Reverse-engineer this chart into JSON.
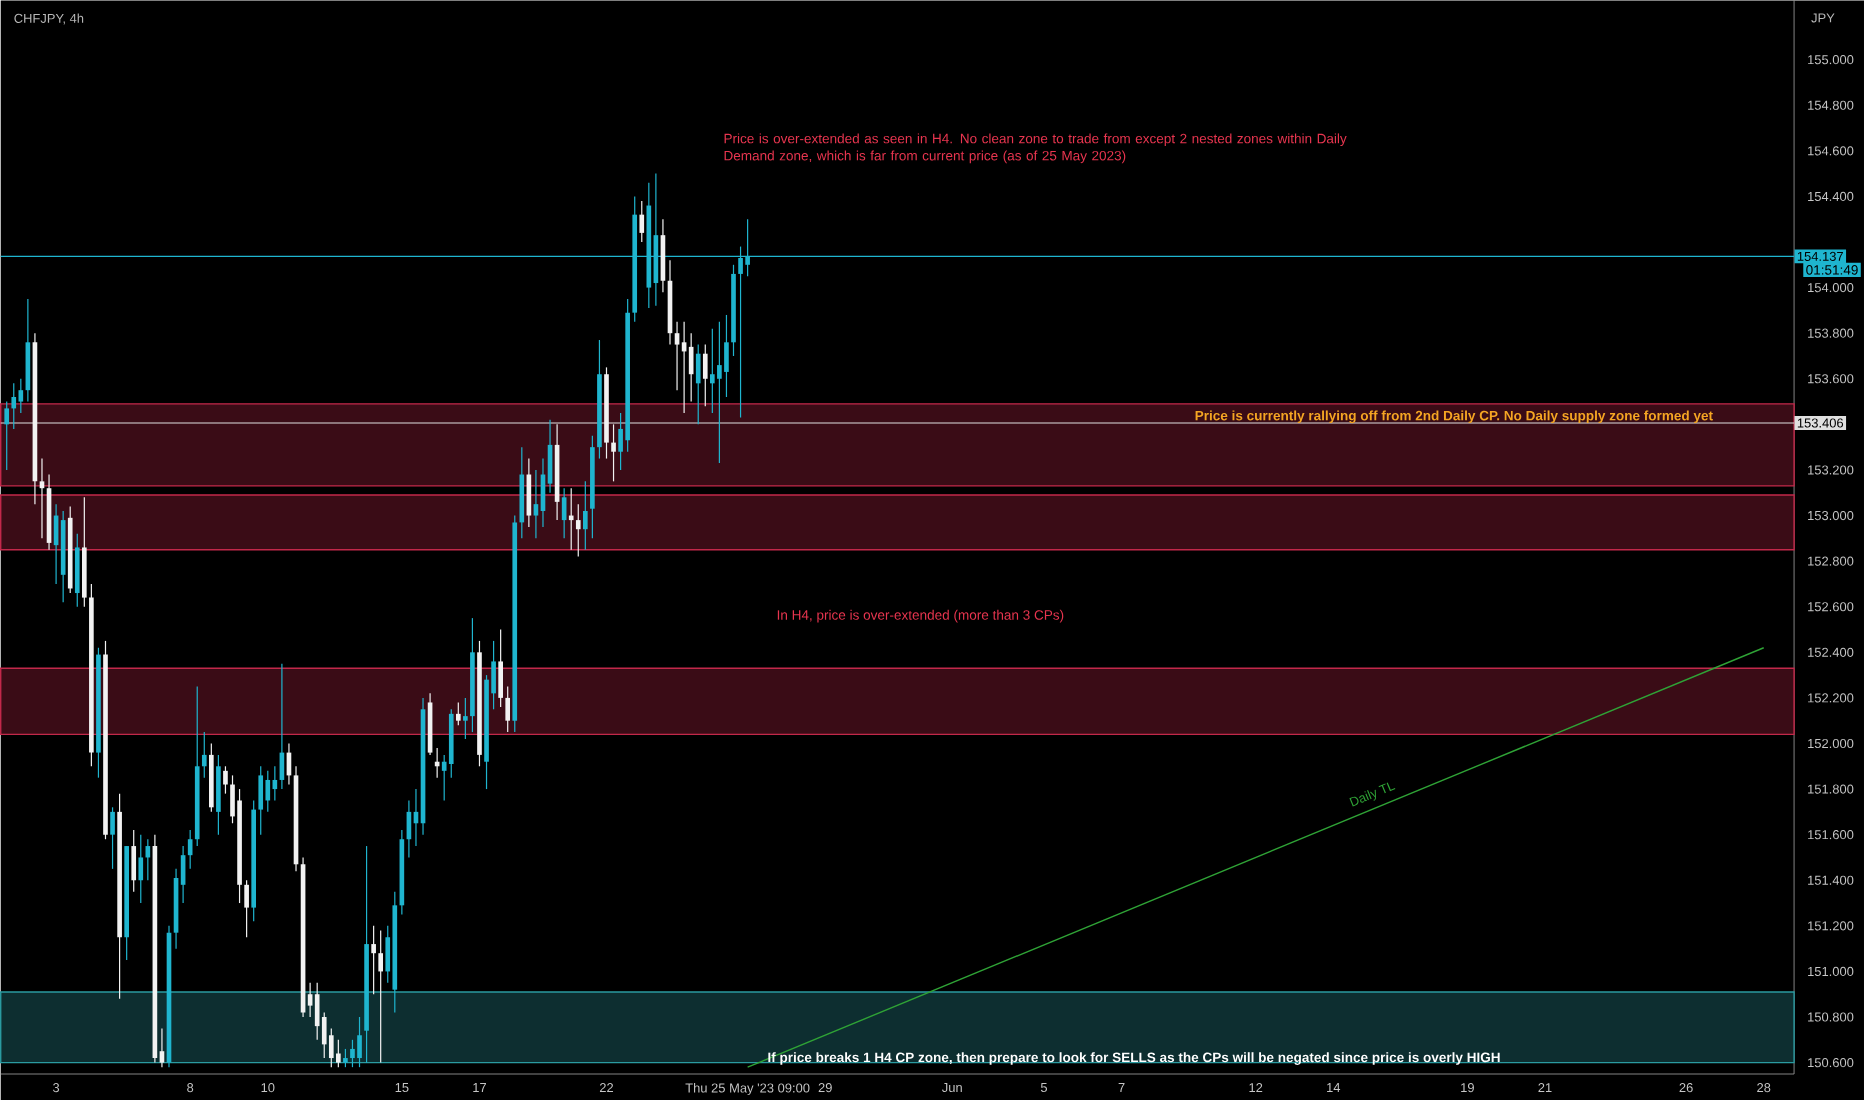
{
  "chart_data": {
    "type": "candlestick",
    "title": "CHFJPY, 4h",
    "ylabel": "JPY",
    "categories": [
      null,
      null,
      null,
      null,
      null,
      null,
      null,
      "3",
      null,
      null,
      null,
      null,
      null,
      null,
      null,
      null,
      null,
      null,
      null,
      null,
      null,
      null,
      null,
      null,
      null,
      null,
      "8",
      null,
      null,
      null,
      null,
      null,
      null,
      null,
      null,
      null,
      null,
      "10",
      null,
      null,
      null,
      null,
      null,
      null,
      null,
      null,
      null,
      null,
      null,
      null,
      null,
      null,
      null,
      null,
      null,
      null,
      "15",
      null,
      null,
      null,
      null,
      null,
      null,
      null,
      null,
      null,
      null,
      "17",
      null,
      null,
      null,
      null,
      null,
      null,
      null,
      null,
      null,
      null,
      null,
      null,
      null,
      null,
      null,
      null,
      null,
      "22",
      null,
      null,
      null,
      null,
      null,
      null,
      null,
      null,
      null,
      null,
      null,
      null,
      null,
      null,
      null,
      null,
      null,
      null,
      null,
      "Thu 25 May '23  09:00",
      null,
      null,
      null,
      null,
      null,
      null,
      null,
      null,
      null,
      null,
      "29",
      null,
      null,
      null,
      null,
      null,
      null,
      null,
      null,
      null,
      null,
      null,
      null,
      null,
      null,
      null,
      null,
      null,
      "Jun",
      null,
      null,
      null,
      null,
      null,
      null,
      null,
      null,
      null,
      null,
      null,
      null,
      "5",
      null,
      null,
      null,
      null,
      null,
      null,
      null,
      null,
      null,
      null,
      "7",
      null,
      null,
      null,
      null,
      null,
      null,
      null,
      null,
      null,
      null,
      null,
      null,
      null,
      null,
      null,
      null,
      null,
      null,
      "12",
      null,
      null,
      null,
      null,
      null,
      null,
      null,
      null,
      null,
      null,
      "14",
      null,
      null,
      null,
      null,
      null,
      null,
      null,
      null,
      null,
      null,
      null,
      null,
      null,
      null,
      null,
      null,
      null,
      null,
      "19",
      null,
      null,
      null,
      null,
      null,
      null,
      null,
      null,
      null,
      null,
      "21",
      null,
      null,
      null,
      null,
      null,
      null,
      null,
      null,
      null,
      null,
      null,
      null,
      null,
      null,
      null,
      null,
      null,
      null,
      null,
      "26",
      null,
      null,
      null,
      null,
      null,
      null,
      null,
      null,
      null,
      null,
      "28",
      null,
      null,
      null
    ],
    "ohlc": [
      [
        153.4,
        153.5,
        153.2,
        153.47
      ],
      [
        153.47,
        153.58,
        153.38,
        153.52
      ],
      [
        153.5,
        153.6,
        153.45,
        153.55
      ],
      [
        153.55,
        153.95,
        153.5,
        153.76
      ],
      [
        153.76,
        153.8,
        153.05,
        153.15
      ],
      [
        153.15,
        153.25,
        152.9,
        153.12
      ],
      [
        153.12,
        153.18,
        152.85,
        152.88
      ],
      [
        152.87,
        153.05,
        152.7,
        153.0
      ],
      [
        152.74,
        153.02,
        152.62,
        152.98
      ],
      [
        152.99,
        153.04,
        152.66,
        152.68
      ],
      [
        152.66,
        152.92,
        152.6,
        152.86
      ],
      [
        152.86,
        153.08,
        152.6,
        152.64
      ],
      [
        152.64,
        152.7,
        151.9,
        151.96
      ],
      [
        151.96,
        152.42,
        151.85,
        152.39
      ],
      [
        152.39,
        152.45,
        151.58,
        151.6
      ],
      [
        151.6,
        151.72,
        151.45,
        151.7
      ],
      [
        151.7,
        151.78,
        150.88,
        151.15
      ],
      [
        151.15,
        151.55,
        151.05,
        151.55
      ],
      [
        151.55,
        151.62,
        151.35,
        151.4
      ],
      [
        151.4,
        151.6,
        151.3,
        151.5
      ],
      [
        151.5,
        151.58,
        151.4,
        151.55
      ],
      [
        151.55,
        151.6,
        150.6,
        150.62
      ],
      [
        150.65,
        150.75,
        150.58,
        150.6
      ],
      [
        150.6,
        151.2,
        150.58,
        151.17
      ],
      [
        151.17,
        151.45,
        151.1,
        151.41
      ],
      [
        151.38,
        151.55,
        151.3,
        151.51
      ],
      [
        151.51,
        151.62,
        151.45,
        151.58
      ],
      [
        151.58,
        152.25,
        151.55,
        151.9
      ],
      [
        151.9,
        152.05,
        151.85,
        151.95
      ],
      [
        151.95,
        152.0,
        151.7,
        151.72
      ],
      [
        151.7,
        151.95,
        151.6,
        151.9
      ],
      [
        151.88,
        151.9,
        151.78,
        151.82
      ],
      [
        151.82,
        151.86,
        151.65,
        151.68
      ],
      [
        151.75,
        151.8,
        151.3,
        151.38
      ],
      [
        151.38,
        151.4,
        151.15,
        151.28
      ],
      [
        151.28,
        151.75,
        151.22,
        151.71
      ],
      [
        151.71,
        151.9,
        151.6,
        151.86
      ],
      [
        151.75,
        151.88,
        151.7,
        151.84
      ],
      [
        151.8,
        151.9,
        151.75,
        151.84
      ],
      [
        151.84,
        152.35,
        151.8,
        151.96
      ],
      [
        151.96,
        152.0,
        151.82,
        151.86
      ],
      [
        151.86,
        151.9,
        151.44,
        151.47
      ],
      [
        151.47,
        151.5,
        150.8,
        150.82
      ],
      [
        150.9,
        150.95,
        150.8,
        150.85
      ],
      [
        150.9,
        150.95,
        150.7,
        150.76
      ],
      [
        150.8,
        150.82,
        150.62,
        150.68
      ],
      [
        150.72,
        150.75,
        150.58,
        150.62
      ],
      [
        150.64,
        150.7,
        150.58,
        150.6
      ],
      [
        150.6,
        150.66,
        150.58,
        150.62
      ],
      [
        150.62,
        150.7,
        150.58,
        150.66
      ],
      [
        150.62,
        150.8,
        150.58,
        150.72
      ],
      [
        150.74,
        151.55,
        150.6,
        151.12
      ],
      [
        151.12,
        151.2,
        150.9,
        151.08
      ],
      [
        151.08,
        151.18,
        150.6,
        151.0
      ],
      [
        151.0,
        151.2,
        150.95,
        151.15
      ],
      [
        150.92,
        151.35,
        150.82,
        151.29
      ],
      [
        151.29,
        151.62,
        151.25,
        151.58
      ],
      [
        151.58,
        151.75,
        151.5,
        151.7
      ],
      [
        151.65,
        151.8,
        151.55,
        151.7
      ],
      [
        151.65,
        152.2,
        151.6,
        152.15
      ],
      [
        152.18,
        152.22,
        151.95,
        151.96
      ],
      [
        151.92,
        151.98,
        151.85,
        151.9
      ],
      [
        151.88,
        151.95,
        151.75,
        151.92
      ],
      [
        151.91,
        152.15,
        151.85,
        152.13
      ],
      [
        152.13,
        152.18,
        152.08,
        152.1
      ],
      [
        152.1,
        152.2,
        152.02,
        152.12
      ],
      [
        152.12,
        152.55,
        152.05,
        152.4
      ],
      [
        152.4,
        152.45,
        151.9,
        151.95
      ],
      [
        151.92,
        152.3,
        151.8,
        152.28
      ],
      [
        152.22,
        152.45,
        152.15,
        152.36
      ],
      [
        152.36,
        152.5,
        152.16,
        152.2
      ],
      [
        152.2,
        152.25,
        152.05,
        152.1
      ],
      [
        152.1,
        153.0,
        152.05,
        152.97
      ],
      [
        152.97,
        153.3,
        152.9,
        153.18
      ],
      [
        153.18,
        153.25,
        152.95,
        153.0
      ],
      [
        153.0,
        153.2,
        152.9,
        153.05
      ],
      [
        153.02,
        153.25,
        152.95,
        153.18
      ],
      [
        153.14,
        153.42,
        153.1,
        153.31
      ],
      [
        153.31,
        153.4,
        152.98,
        153.06
      ],
      [
        152.98,
        153.12,
        152.9,
        153.08
      ],
      [
        153.0,
        153.12,
        152.85,
        152.98
      ],
      [
        152.98,
        153.05,
        152.82,
        152.94
      ],
      [
        152.94,
        153.15,
        152.85,
        153.02
      ],
      [
        153.03,
        153.35,
        152.9,
        153.3
      ],
      [
        153.3,
        153.77,
        153.25,
        153.62
      ],
      [
        153.62,
        153.65,
        153.25,
        153.32
      ],
      [
        153.32,
        153.4,
        153.15,
        153.28
      ],
      [
        153.28,
        153.45,
        153.2,
        153.38
      ],
      [
        153.33,
        153.95,
        153.28,
        153.89
      ],
      [
        153.89,
        154.4,
        153.85,
        154.32
      ],
      [
        154.32,
        154.38,
        154.2,
        154.24
      ],
      [
        154.0,
        154.46,
        153.91,
        154.36
      ],
      [
        154.02,
        154.5,
        153.92,
        154.23
      ],
      [
        154.23,
        154.3,
        153.98,
        154.03
      ],
      [
        154.03,
        154.12,
        153.75,
        153.8
      ],
      [
        153.8,
        153.85,
        153.55,
        153.75
      ],
      [
        153.76,
        153.85,
        153.45,
        153.72
      ],
      [
        153.74,
        153.8,
        153.5,
        153.62
      ],
      [
        153.58,
        153.75,
        153.4,
        153.71
      ],
      [
        153.71,
        153.75,
        153.48,
        153.6
      ],
      [
        153.58,
        153.82,
        153.45,
        153.62
      ],
      [
        153.6,
        153.85,
        153.23,
        153.66
      ],
      [
        153.63,
        153.88,
        153.52,
        153.76
      ],
      [
        153.76,
        154.1,
        153.7,
        154.06
      ],
      [
        154.06,
        154.18,
        153.43,
        154.13
      ],
      [
        154.1,
        154.3,
        154.05,
        154.137
      ],
      null,
      null,
      null,
      null,
      null,
      null,
      null,
      null,
      null,
      null,
      null,
      null,
      null,
      null,
      null,
      null,
      null,
      null,
      null,
      null,
      null,
      null,
      null,
      null,
      null,
      null,
      null,
      null,
      null,
      null,
      null,
      null,
      null,
      null,
      null,
      null,
      null,
      null,
      null,
      null,
      null,
      null,
      null,
      null,
      null,
      null,
      null,
      null,
      null,
      null,
      null,
      null,
      null,
      null,
      null,
      null,
      null,
      null,
      null,
      null,
      null,
      null,
      null,
      null,
      null,
      null,
      null,
      null,
      null,
      null,
      null,
      null,
      null,
      null,
      null,
      null,
      null,
      null,
      null,
      null,
      null,
      null,
      null,
      null,
      null,
      null,
      null,
      null,
      null,
      null,
      null,
      null,
      null,
      null,
      null,
      null,
      null,
      null,
      null,
      null,
      null,
      null,
      null,
      null,
      null,
      null,
      null,
      null,
      null,
      null,
      null,
      null,
      null,
      null,
      null,
      null,
      null,
      null,
      null,
      null,
      null,
      null,
      null,
      null,
      null,
      null,
      null,
      null,
      null,
      null,
      null,
      null,
      null,
      null,
      null,
      null,
      null,
      null,
      null,
      null,
      null,
      null,
      null,
      null,
      null,
      null,
      null
    ],
    "colors": [
      "#1fb5cf",
      "#1fb5cf",
      "#1fb5cf",
      "#1fb5cf",
      "#f2f2f2",
      "#f2f2f2",
      "#f2f2f2",
      "#1fb5cf",
      "#1fb5cf",
      "#f2f2f2",
      "#1fb5cf",
      "#f2f2f2",
      "#f2f2f2",
      "#1fb5cf",
      "#f2f2f2",
      "#1fb5cf",
      "#f2f2f2",
      "#1fb5cf",
      "#f2f2f2",
      "#1fb5cf",
      "#1fb5cf",
      "#f2f2f2",
      "#f2f2f2",
      "#1fb5cf",
      "#1fb5cf",
      "#1fb5cf",
      "#1fb5cf",
      "#1fb5cf",
      "#1fb5cf",
      "#f2f2f2",
      "#1fb5cf",
      "#f2f2f2",
      "#f2f2f2",
      "#f2f2f2",
      "#f2f2f2",
      "#1fb5cf",
      "#1fb5cf",
      "#1fb5cf",
      "#1fb5cf",
      "#1fb5cf",
      "#f2f2f2",
      "#f2f2f2",
      "#f2f2f2",
      "#f2f2f2",
      "#f2f2f2",
      "#f2f2f2",
      "#f2f2f2",
      "#f2f2f2",
      "#1fb5cf",
      "#1fb5cf",
      "#1fb5cf",
      "#1fb5cf",
      "#f2f2f2",
      "#f2f2f2",
      "#1fb5cf",
      "#1fb5cf",
      "#1fb5cf",
      "#1fb5cf",
      "#1fb5cf",
      "#1fb5cf",
      "#f2f2f2",
      "#f2f2f2",
      "#1fb5cf",
      "#1fb5cf",
      "#f2f2f2",
      "#1fb5cf",
      "#1fb5cf",
      "#f2f2f2",
      "#1fb5cf",
      "#1fb5cf",
      "#f2f2f2",
      "#f2f2f2",
      "#1fb5cf",
      "#1fb5cf",
      "#f2f2f2",
      "#1fb5cf",
      "#1fb5cf",
      "#1fb5cf",
      "#f2f2f2",
      "#1fb5cf",
      "#f2f2f2",
      "#f2f2f2",
      "#1fb5cf",
      "#1fb5cf",
      "#1fb5cf",
      "#f2f2f2",
      "#f2f2f2",
      "#1fb5cf",
      "#1fb5cf",
      "#1fb5cf",
      "#f2f2f2",
      "#1fb5cf",
      "#1fb5cf",
      "#f2f2f2",
      "#f2f2f2",
      "#f2f2f2",
      "#f2f2f2",
      "#f2f2f2",
      "#1fb5cf",
      "#f2f2f2",
      "#1fb5cf",
      "#1fb5cf",
      "#1fb5cf",
      "#1fb5cf",
      "#1fb5cf",
      "#1fb5cf",
      null,
      null,
      null,
      null,
      null,
      null,
      null,
      null,
      null,
      null,
      null,
      null,
      null,
      null,
      null,
      null,
      null,
      null,
      null,
      null,
      null,
      null,
      null,
      null,
      null,
      null,
      null,
      null,
      null,
      null,
      null,
      null,
      null,
      null,
      null,
      null,
      null,
      null,
      null,
      null,
      null,
      null,
      null,
      null,
      null,
      null,
      null,
      null,
      null,
      null,
      null,
      null,
      null,
      null,
      null,
      null,
      null,
      null,
      null,
      null,
      null,
      null,
      null,
      null,
      null,
      null,
      null,
      null,
      null,
      null,
      null,
      null,
      null,
      null,
      null,
      null,
      null,
      null,
      null,
      null,
      null,
      null,
      null,
      null,
      null,
      null,
      null,
      null,
      null,
      null,
      null,
      null,
      null,
      null,
      null,
      null,
      null,
      null,
      null,
      null,
      null,
      null,
      null,
      null,
      null,
      null,
      null,
      null,
      null,
      null,
      null,
      null,
      null,
      null,
      null,
      null,
      null,
      null,
      null,
      null,
      null,
      null,
      null,
      null,
      null,
      null,
      null,
      null,
      null,
      null,
      null,
      null,
      null,
      null,
      null,
      null,
      null,
      null,
      null,
      null,
      null,
      null,
      null,
      null,
      null,
      null,
      null
    ],
    "series": [
      {
        "type": "line",
        "name": "Daily TL",
        "color": "#2fa336",
        "x": [
          "Thu 25 May '23  09:00",
          "28"
        ],
        "values": [
          150.58,
          152.42
        ]
      }
    ],
    "ylim": [
      150.55,
      155.26
    ],
    "yticks": [
      {
        "value": 150.6,
        "label": "150.600"
      },
      {
        "value": 150.8,
        "label": "150.800"
      },
      {
        "value": 151.0,
        "label": "151.000"
      },
      {
        "value": 151.2,
        "label": "151.200"
      },
      {
        "value": 151.4,
        "label": "151.400"
      },
      {
        "value": 151.6,
        "label": "151.600"
      },
      {
        "value": 151.8,
        "label": "151.800"
      },
      {
        "value": 152.0,
        "label": "152.000"
      },
      {
        "value": 152.2,
        "label": "152.200"
      },
      {
        "value": 152.4,
        "label": "152.400"
      },
      {
        "value": 152.6,
        "label": "152.600"
      },
      {
        "value": 152.8,
        "label": "152.800"
      },
      {
        "value": 153.0,
        "label": "153.000"
      },
      {
        "value": 153.2,
        "label": "153.200"
      },
      {
        "value": 153.6,
        "label": "153.600"
      },
      {
        "value": 153.8,
        "label": "153.800"
      },
      {
        "value": 154.0,
        "label": "154.000"
      },
      {
        "value": 154.4,
        "label": "154.400"
      },
      {
        "value": 154.6,
        "label": "154.600"
      },
      {
        "value": 154.8,
        "label": "154.800"
      },
      {
        "value": 155.0,
        "label": "155.000"
      }
    ],
    "ref_lines": [
      {
        "axis": "y",
        "value": 153.406,
        "label": "153.406",
        "color": "#e0e0e0"
      },
      {
        "axis": "y",
        "value": 154.137,
        "label": "154.137",
        "color": "#1fb5cf"
      }
    ],
    "bands": [
      {
        "axis": "y",
        "from": 153.13,
        "to": 153.49,
        "color": "#c2284a"
      },
      {
        "axis": "y",
        "from": 152.85,
        "to": 153.09,
        "color": "#c2284a"
      },
      {
        "axis": "y",
        "from": 152.04,
        "to": 152.33,
        "color": "#c2284a"
      },
      {
        "axis": "y",
        "from": 150.6,
        "to": 150.91,
        "color": "#2a9aa0"
      }
    ],
    "annotations": [
      "Price is over-extended as seen in H4. No clean zone to trade from except 2 nested zones within Daily Demand zone, which is far from current price (as of 25 May 2023)",
      "Price is currently rallying off from 2nd Daily CP. No Daily supply zone formed yet",
      "In H4, price is over-extended (more than 3 CPs)",
      "If price breaks 1 H4 CP zone, then prepare to look for SELLS as the CPs will be negated since price is overly HIGH",
      "01:51:49"
    ]
  }
}
